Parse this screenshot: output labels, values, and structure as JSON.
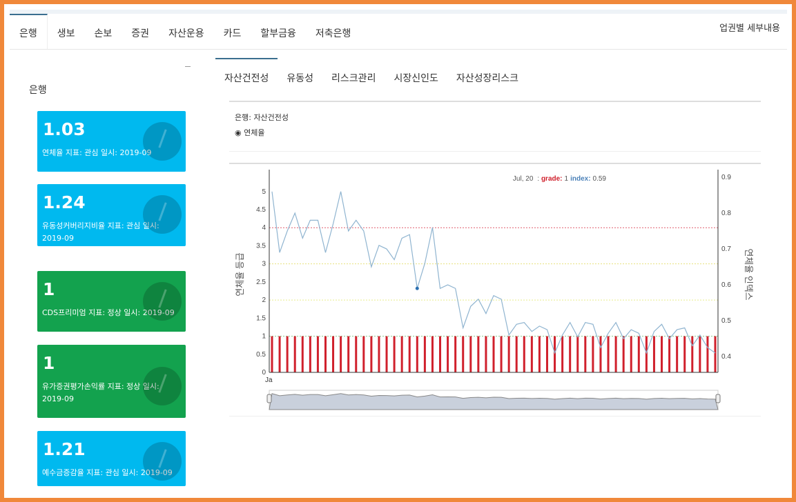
{
  "nav": {
    "tabs": [
      "은행",
      "생보",
      "손보",
      "증권",
      "자산운용",
      "카드",
      "할부금융",
      "저축은행"
    ],
    "active": 0,
    "detail_link": "업권별 세부내용"
  },
  "sidebar": {
    "title": "은행",
    "cards": [
      {
        "value": "1.03",
        "label": "연체율 지표: 관심 일시: 2019-09",
        "status": "관심",
        "color": "#00b9ef"
      },
      {
        "value": "1.24",
        "label": "유동성커버리지비율 지표: 관심 일시: 2019-09",
        "status": "관심",
        "color": "#00b9ef"
      },
      {
        "value": "1",
        "label": "CDS프리미엄 지표: 정상 일시: 2019-09",
        "status": "정상",
        "color": "#13a24e"
      },
      {
        "value": "1",
        "label": "유가증권평가손익률 지표: 정상 일시: 2019-09",
        "status": "정상",
        "color": "#13a24e"
      },
      {
        "value": "1.21",
        "label": "예수금증감율 지표: 관심 일시: 2019-09",
        "status": "관심",
        "color": "#00b9ef"
      }
    ]
  },
  "subtabs": {
    "tabs": [
      "자산건전성",
      "유동성",
      "리스크관리",
      "시장신인도",
      "자산성장리스크"
    ],
    "active": 0
  },
  "selector": {
    "title": "은행: 자산건전성",
    "radio_label": "연체율",
    "radio_icon": "radio-selected-icon"
  },
  "chart_data": {
    "type": "bar+line",
    "ylabel": "연체율 등급",
    "y2label": "연체율 인덱스",
    "ylim": [
      0,
      5.53
    ],
    "y2lim": [
      0.356,
      0.9134
    ],
    "yticks": [
      "0",
      "0.5",
      "1",
      "1.5",
      "2",
      "2.5",
      "3",
      "3.5",
      "4",
      "4.5",
      "5"
    ],
    "y2ticks": [
      "0.4",
      "0.5",
      "0.6",
      "0.7",
      "0.8",
      "0.9"
    ],
    "xtick_first": "Ja",
    "thresholds": [
      {
        "value": 4,
        "color": "#e05a6a"
      },
      {
        "value": 3,
        "color": "#e8e07a"
      },
      {
        "value": 2,
        "color": "#e8ec8a"
      },
      {
        "value": 1,
        "color": "#8fc98f"
      }
    ],
    "series": [
      {
        "name": "grade",
        "type": "bar",
        "axis": "left",
        "color": "#d0202c",
        "value_each": 1,
        "count": 59
      },
      {
        "name": "index",
        "type": "line",
        "axis": "right",
        "color": "#8fb4d0",
        "values": [
          0.86,
          0.69,
          0.75,
          0.8,
          0.73,
          0.78,
          0.78,
          0.69,
          0.77,
          0.86,
          0.75,
          0.78,
          0.75,
          0.65,
          0.71,
          0.7,
          0.67,
          0.73,
          0.74,
          0.59,
          0.66,
          0.76,
          0.59,
          0.6,
          0.59,
          0.48,
          0.54,
          0.56,
          0.52,
          0.57,
          0.56,
          0.46,
          0.49,
          0.495,
          0.47,
          0.485,
          0.475,
          0.41,
          0.46,
          0.495,
          0.455,
          0.495,
          0.49,
          0.425,
          0.465,
          0.495,
          0.45,
          0.475,
          0.465,
          0.41,
          0.47,
          0.49,
          0.45,
          0.475,
          0.48,
          0.43,
          0.46,
          0.425,
          0.41
        ]
      }
    ],
    "highlight_index": 19,
    "tooltip": {
      "date": "Jul, 20",
      "grade_label": "grade:",
      "grade": "1",
      "index_label": "index:",
      "index": "0.59"
    }
  }
}
